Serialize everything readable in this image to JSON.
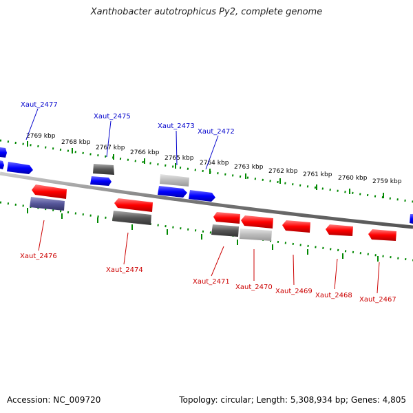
{
  "title": "Xanthobacter autotrophicus Py2, complete genome",
  "footer": {
    "accession": "Accession: NC_009720",
    "summary": "Topology: circular; Length: 5,308,934 bp; Genes: 4,805"
  },
  "colors": {
    "forward_gene": "#0000ff",
    "reverse_gene": "#ff0000",
    "pseudo_dark": "#555555",
    "pseudo_light": "#bbbbbb",
    "dark_blue_gene": "#555599",
    "tick_line": "#008800",
    "forward_label": "#0000cc",
    "reverse_label": "#cc0000",
    "backbone": "#777777"
  },
  "scale_labels": [
    "2769 kbp",
    "2768 kbp",
    "2767 kbp",
    "2766 kbp",
    "2765 kbp",
    "2764 kbp",
    "2763 kbp",
    "2762 kbp",
    "2761 kbp",
    "2760 kbp",
    "2759 kbp"
  ],
  "forward_labels": [
    "Xaut_2477",
    "Xaut_2475",
    "Xaut_2473",
    "Xaut_2472"
  ],
  "reverse_labels": [
    "Xaut_2476",
    "Xaut_2474",
    "Xaut_2471",
    "Xaut_2470",
    "Xaut_2469",
    "Xaut_2468",
    "Xaut_2467"
  ]
}
